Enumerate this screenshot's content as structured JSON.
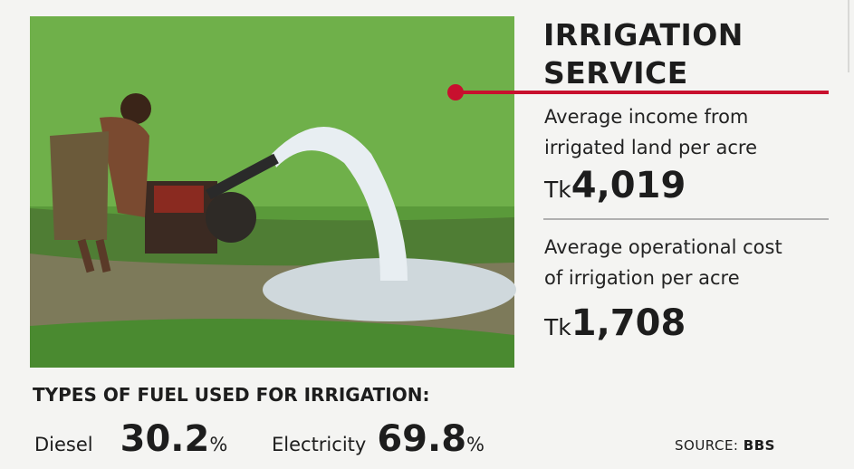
{
  "header": {
    "title_lines": [
      "IRRIGATION",
      "SERVICE"
    ]
  },
  "stats": [
    {
      "label_lines": [
        "Average income from",
        "irrigated land per acre"
      ],
      "currency": "Tk",
      "value": "4,019"
    },
    {
      "label_lines": [
        "Average operational cost",
        "of irrigation per acre"
      ],
      "currency": "Tk",
      "value": "1,708"
    }
  ],
  "fuel": {
    "heading": "TYPES OF FUEL USED FOR IRRIGATION:",
    "items": [
      {
        "name": "Diesel",
        "value": "30.2",
        "unit": "%"
      },
      {
        "name": "Electricity",
        "value": "69.8",
        "unit": "%"
      }
    ]
  },
  "source": {
    "label": "SOURCE:",
    "value": "BBS"
  }
}
